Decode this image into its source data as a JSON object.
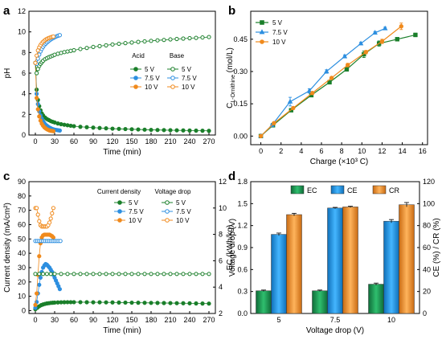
{
  "chart_data": [
    {
      "panel": "a",
      "type": "scatter",
      "xlabel": "Time (min)",
      "ylabel": "pH",
      "xlim": [
        -10,
        280
      ],
      "ylim": [
        0,
        12
      ],
      "xticks": [
        0,
        30,
        60,
        90,
        120,
        150,
        180,
        210,
        240,
        270
      ],
      "yticks": [
        0,
        2,
        4,
        6,
        8,
        10,
        12
      ],
      "legend_headers": [
        "Acid",
        "Base"
      ],
      "legend_position": "center-right",
      "series": [
        {
          "name": "5 V",
          "group": "Acid",
          "color": "#1a7f2a",
          "filled": true,
          "x": [
            0,
            2,
            4,
            6,
            8,
            10,
            12,
            15,
            18,
            21,
            24,
            27,
            30,
            35,
            40,
            45,
            50,
            55,
            60,
            70,
            80,
            90,
            100,
            110,
            120,
            130,
            140,
            150,
            160,
            170,
            180,
            190,
            200,
            210,
            220,
            230,
            240,
            250,
            260,
            270
          ],
          "y": [
            7.0,
            4.4,
            3.4,
            2.8,
            2.4,
            2.1,
            1.9,
            1.7,
            1.55,
            1.45,
            1.35,
            1.28,
            1.22,
            1.12,
            1.05,
            1.0,
            0.95,
            0.9,
            0.86,
            0.8,
            0.76,
            0.72,
            0.68,
            0.65,
            0.62,
            0.6,
            0.58,
            0.56,
            0.54,
            0.52,
            0.5,
            0.49,
            0.48,
            0.47,
            0.46,
            0.45,
            0.44,
            0.43,
            0.42,
            0.41
          ]
        },
        {
          "name": "7.5 V",
          "group": "Acid",
          "color": "#2d8fe0",
          "filled": true,
          "x": [
            0,
            2,
            4,
            6,
            8,
            10,
            12,
            14,
            16,
            18,
            20,
            22,
            24,
            26,
            28,
            30,
            32,
            34,
            36,
            38
          ],
          "y": [
            7.0,
            4.0,
            3.0,
            2.3,
            1.9,
            1.6,
            1.35,
            1.15,
            1.0,
            0.9,
            0.8,
            0.72,
            0.66,
            0.6,
            0.56,
            0.52,
            0.5,
            0.48,
            0.46,
            0.44
          ]
        },
        {
          "name": "10 V",
          "group": "Acid",
          "color": "#f08a1c",
          "filled": true,
          "x": [
            0,
            2,
            4,
            6,
            8,
            10,
            12,
            14,
            16,
            18,
            20,
            22,
            24,
            26,
            28
          ],
          "y": [
            7.0,
            3.6,
            2.5,
            1.8,
            1.4,
            1.1,
            0.9,
            0.75,
            0.65,
            0.56,
            0.5,
            0.45,
            0.42,
            0.4,
            0.38
          ]
        },
        {
          "name": "5 V",
          "group": "Base",
          "color": "#1a7f2a",
          "filled": false,
          "x": [
            0,
            2,
            4,
            6,
            8,
            10,
            12,
            15,
            18,
            21,
            24,
            27,
            30,
            35,
            40,
            45,
            50,
            55,
            60,
            70,
            80,
            90,
            100,
            110,
            120,
            130,
            140,
            150,
            160,
            170,
            180,
            190,
            200,
            210,
            220,
            230,
            240,
            250,
            260,
            270
          ],
          "y": [
            7.0,
            6.0,
            6.4,
            6.7,
            6.9,
            7.05,
            7.2,
            7.35,
            7.45,
            7.55,
            7.62,
            7.7,
            7.78,
            7.88,
            7.96,
            8.04,
            8.1,
            8.16,
            8.22,
            8.34,
            8.44,
            8.54,
            8.62,
            8.7,
            8.78,
            8.85,
            8.91,
            8.97,
            9.03,
            9.08,
            9.13,
            9.18,
            9.22,
            9.27,
            9.31,
            9.35,
            9.39,
            9.42,
            9.46,
            9.5
          ]
        },
        {
          "name": "7.5 V",
          "group": "Base",
          "color": "#2d8fe0",
          "filled": false,
          "x": [
            0,
            2,
            4,
            6,
            8,
            10,
            12,
            14,
            16,
            18,
            20,
            22,
            24,
            26,
            28,
            30,
            32,
            34,
            36,
            38
          ],
          "y": [
            7.0,
            6.9,
            7.4,
            7.8,
            8.1,
            8.35,
            8.55,
            8.72,
            8.85,
            8.97,
            9.08,
            9.18,
            9.27,
            9.35,
            9.42,
            9.48,
            9.54,
            9.6,
            9.64,
            9.68
          ]
        },
        {
          "name": "10 V",
          "group": "Base",
          "color": "#f08a1c",
          "filled": false,
          "x": [
            0,
            2,
            4,
            6,
            8,
            10,
            12,
            14,
            16,
            18,
            20,
            22,
            24,
            26,
            28
          ],
          "y": [
            7.0,
            7.7,
            8.2,
            8.5,
            8.72,
            8.9,
            9.04,
            9.15,
            9.25,
            9.32,
            9.38,
            9.43,
            9.48,
            9.52,
            9.55
          ]
        }
      ]
    },
    {
      "panel": "b",
      "type": "line",
      "xlabel": "Charge (×10³ C)",
      "ylabel": "C_L-Ornithine (mol/L)",
      "ylabel_main": "C",
      "ylabel_sub": "L-Ornithine",
      "ylabel_unit": " (mol/L)",
      "xlim": [
        -1,
        16.5
      ],
      "ylim": [
        -0.04,
        0.58
      ],
      "xticks": [
        0,
        2,
        4,
        6,
        8,
        10,
        12,
        14,
        16
      ],
      "yticks": [
        0.0,
        0.15,
        0.3,
        0.45
      ],
      "legend_position": "top-left",
      "series": [
        {
          "name": "5 V",
          "color": "#1a7f2a",
          "marker": "square",
          "x": [
            0,
            1.2,
            3,
            5,
            6.8,
            8.5,
            10.2,
            11.7,
            13.5,
            15.3
          ],
          "y": [
            0,
            0.05,
            0.12,
            0.19,
            0.25,
            0.31,
            0.38,
            0.43,
            0.45,
            0.47
          ],
          "err": [
            0,
            0.005,
            0.006,
            0.006,
            0.006,
            0.007,
            0.015,
            0.012,
            0.008,
            0.008
          ]
        },
        {
          "name": "7.5 V",
          "color": "#2d8fe0",
          "marker": "triangle",
          "x": [
            0,
            1.1,
            2.9,
            4.8,
            6.5,
            8.3,
            9.9,
            11.3,
            12.3
          ],
          "y": [
            0,
            0.05,
            0.16,
            0.21,
            0.3,
            0.37,
            0.43,
            0.48,
            0.5
          ],
          "err": [
            0,
            0.005,
            0.02,
            0.01,
            0.008,
            0.007,
            0.006,
            0.006,
            0.006
          ]
        },
        {
          "name": "10 V",
          "color": "#f08a1c",
          "marker": "circle",
          "x": [
            0,
            1.3,
            3.2,
            5.1,
            7.0,
            8.6,
            10.4,
            12.0,
            13.9
          ],
          "y": [
            0,
            0.06,
            0.13,
            0.2,
            0.27,
            0.33,
            0.39,
            0.44,
            0.51
          ],
          "err": [
            0,
            0.005,
            0.006,
            0.006,
            0.006,
            0.008,
            0.008,
            0.01,
            0.015
          ]
        }
      ]
    },
    {
      "panel": "c",
      "type": "scatter",
      "xlabel": "Time (min)",
      "ylabel": "Current density (mA/cm²)",
      "ylabel_right": "Voltage drop (V)",
      "xlim": [
        -10,
        280
      ],
      "ylim": [
        -2,
        90
      ],
      "ylim_right": [
        2,
        12
      ],
      "xticks": [
        0,
        30,
        60,
        90,
        120,
        150,
        180,
        210,
        240,
        270
      ],
      "yticks": [
        0,
        10,
        20,
        30,
        40,
        50,
        60,
        70,
        80,
        90
      ],
      "yticks_right": [
        2,
        4,
        6,
        8,
        10,
        12
      ],
      "legend_headers": [
        "Current density",
        "Voltage drop"
      ],
      "legend_position": "top-right",
      "series": [
        {
          "name": "5 V",
          "group": "Current density",
          "axis": "left",
          "color": "#1a7f2a",
          "filled": true,
          "x": [
            0,
            3,
            6,
            9,
            12,
            15,
            18,
            21,
            24,
            27,
            30,
            35,
            40,
            45,
            50,
            55,
            60,
            70,
            80,
            90,
            100,
            110,
            120,
            130,
            140,
            150,
            160,
            170,
            180,
            190,
            200,
            210,
            220,
            230,
            240,
            250,
            260,
            270
          ],
          "y": [
            1,
            2,
            3,
            3.8,
            4.3,
            4.7,
            5.0,
            5.2,
            5.4,
            5.5,
            5.6,
            5.7,
            5.8,
            5.85,
            5.9,
            5.9,
            5.9,
            5.9,
            5.85,
            5.8,
            5.8,
            5.75,
            5.7,
            5.65,
            5.6,
            5.55,
            5.5,
            5.45,
            5.4,
            5.35,
            5.3,
            5.25,
            5.2,
            5.15,
            5.1,
            5.0,
            4.95,
            4.9
          ]
        },
        {
          "name": "7.5 V",
          "group": "Current density",
          "axis": "left",
          "color": "#2d8fe0",
          "filled": true,
          "x": [
            0,
            2,
            4,
            6,
            8,
            10,
            12,
            14,
            16,
            18,
            20,
            22,
            24,
            26,
            28,
            30,
            32,
            34,
            36,
            38
          ],
          "y": [
            2,
            6,
            12,
            18,
            23,
            27,
            30,
            31.5,
            32.5,
            32,
            31,
            30,
            28.5,
            27,
            25,
            23,
            21,
            19,
            17,
            15
          ]
        },
        {
          "name": "10 V",
          "group": "Current density",
          "axis": "left",
          "color": "#f08a1c",
          "filled": true,
          "x": [
            0,
            2,
            4,
            6,
            8,
            10,
            12,
            14,
            16,
            18,
            20,
            22,
            24,
            26,
            28
          ],
          "y": [
            4,
            12,
            25,
            38,
            47,
            51,
            52.5,
            53,
            53,
            53,
            53,
            53,
            52.5,
            52,
            51
          ]
        },
        {
          "name": "5 V",
          "group": "Voltage drop",
          "axis": "right",
          "color": "#1a7f2a",
          "filled": false,
          "x": [
            0,
            6,
            12,
            18,
            24,
            30,
            40,
            50,
            60,
            70,
            80,
            90,
            100,
            110,
            120,
            130,
            140,
            150,
            160,
            170,
            180,
            190,
            200,
            210,
            220,
            230,
            240,
            250,
            260,
            270
          ],
          "y": [
            5,
            5,
            5,
            5,
            5,
            5,
            5,
            5,
            5,
            5,
            5,
            5,
            5,
            5,
            5,
            5,
            5,
            5,
            5,
            5,
            5,
            5,
            5,
            5,
            5,
            5,
            5,
            5,
            5,
            5
          ]
        },
        {
          "name": "7.5 V",
          "group": "Voltage drop",
          "axis": "right",
          "color": "#2d8fe0",
          "filled": false,
          "x": [
            0,
            3,
            6,
            9,
            12,
            15,
            18,
            21,
            24,
            27,
            30,
            33,
            36,
            39
          ],
          "y": [
            7.5,
            7.5,
            7.5,
            7.5,
            7.5,
            7.5,
            7.5,
            7.5,
            7.5,
            7.5,
            7.5,
            7.5,
            7.5,
            7.5
          ]
        },
        {
          "name": "10 V",
          "group": "Voltage drop",
          "axis": "right",
          "color": "#f08a1c",
          "filled": false,
          "x": [
            0,
            2,
            4,
            6,
            8,
            10,
            12,
            14,
            16,
            18,
            20,
            22,
            24,
            26,
            28
          ],
          "y": [
            10,
            10,
            9.5,
            9,
            8.7,
            8.6,
            8.6,
            8.6,
            8.6,
            8.6,
            8.7,
            8.9,
            9.2,
            9.6,
            10
          ]
        }
      ]
    },
    {
      "panel": "d",
      "type": "bar",
      "xlabel": "Voltage drop (V)",
      "ylabel": "EC (kWh/kg)",
      "ylabel_right": "CE (%) / CR (%)",
      "categories": [
        "5",
        "7.5",
        "10"
      ],
      "ylim": [
        0,
        1.8
      ],
      "ylim_right": [
        0,
        120
      ],
      "yticks": [
        0.0,
        0.3,
        0.6,
        0.9,
        1.2,
        1.5,
        1.8
      ],
      "yticks_right": [
        0,
        20,
        40,
        60,
        80,
        100,
        120
      ],
      "legend_position": "top",
      "series": [
        {
          "name": "EC",
          "axis": "left",
          "color": "#1f9e57",
          "values": [
            0.31,
            0.31,
            0.4
          ],
          "err": [
            0.01,
            0.01,
            0.015
          ]
        },
        {
          "name": "CE",
          "axis": "right",
          "color": "#2299ec",
          "values": [
            72,
            96,
            84
          ],
          "err": [
            1.2,
            0.6,
            1.5
          ]
        },
        {
          "name": "CR",
          "axis": "right",
          "color": "#f39a3e",
          "values": [
            90,
            97,
            99
          ],
          "err": [
            1.2,
            0.6,
            2.0
          ]
        }
      ]
    }
  ]
}
